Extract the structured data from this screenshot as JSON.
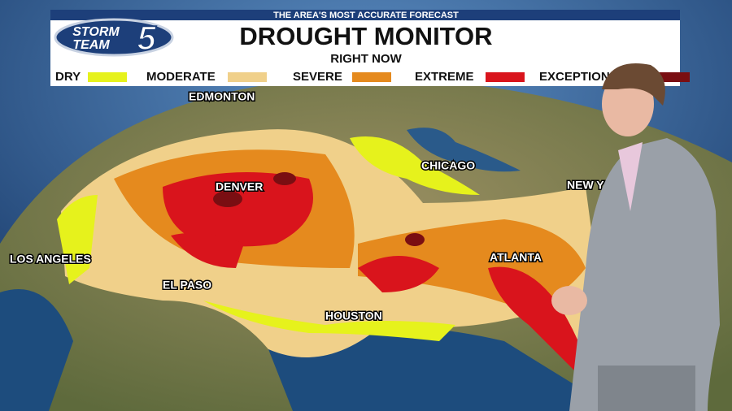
{
  "banner": {
    "tagline": "THE AREA'S MOST ACCURATE FORECAST",
    "logo_line1": "STORM",
    "logo_line2": "TEAM",
    "logo_number": "5",
    "title": "DROUGHT MONITOR",
    "subtitle": "RIGHT NOW"
  },
  "legend": [
    {
      "label": "DRY",
      "color": "#e6f21c"
    },
    {
      "label": "MODERATE",
      "color": "#f0d08a"
    },
    {
      "label": "SEVERE",
      "color": "#e58a1e"
    },
    {
      "label": "EXTREME",
      "color": "#d9141c"
    },
    {
      "label": "EXCEPTIONAL",
      "color": "#7a0e12"
    }
  ],
  "cities": [
    "EDMONTON",
    "DENVER",
    "CHICAGO",
    "NEW YORK",
    "LOS ANGELES",
    "EL PASO",
    "HOUSTON",
    "ATLANTA"
  ]
}
